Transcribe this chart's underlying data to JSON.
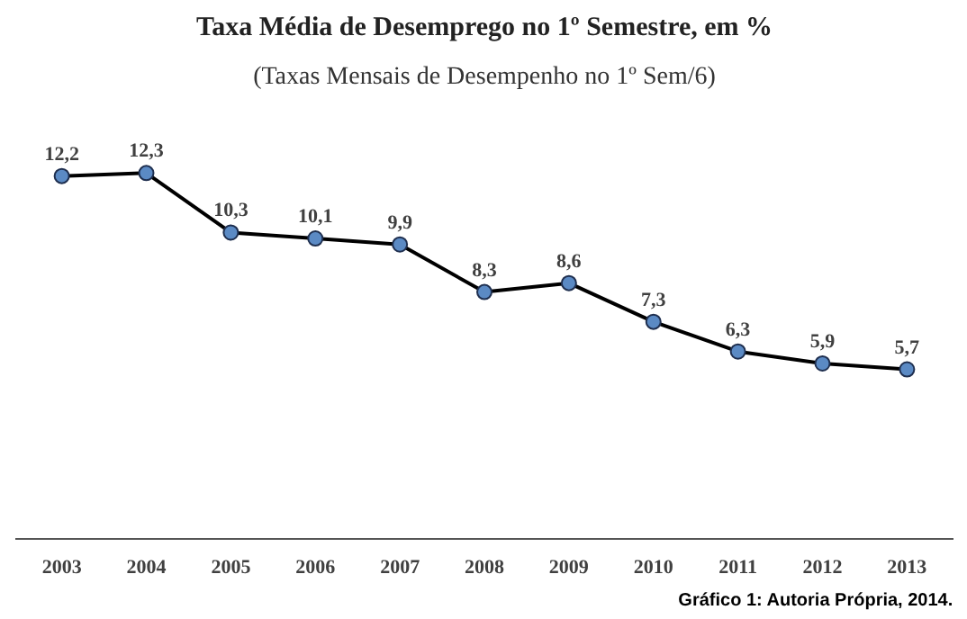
{
  "chart_data": {
    "type": "line",
    "title": "Taxa Média de Desemprego no 1º Semestre, em %",
    "subtitle": "(Taxas Mensais de Desempenho no 1º Sem/6)",
    "categories": [
      "2003",
      "2004",
      "2005",
      "2006",
      "2007",
      "2008",
      "2009",
      "2010",
      "2011",
      "2012",
      "2013"
    ],
    "series": [
      {
        "color": "#000000",
        "values": [
          12.2,
          12.3,
          10.3,
          10.1,
          9.9,
          8.3,
          8.6,
          7.3,
          6.3,
          5.9,
          5.7
        ],
        "value_labels": [
          "12,2",
          "12,3",
          "10,3",
          "10,1",
          "9,9",
          "8,3",
          "8,6",
          "7,3",
          "6,3",
          "5,9",
          "5,7"
        ]
      }
    ],
    "marker": "circle",
    "line_style": "solid",
    "grid": false,
    "annotations": [
      "Gráfico 1: Autoria Própria, 2014."
    ]
  }
}
